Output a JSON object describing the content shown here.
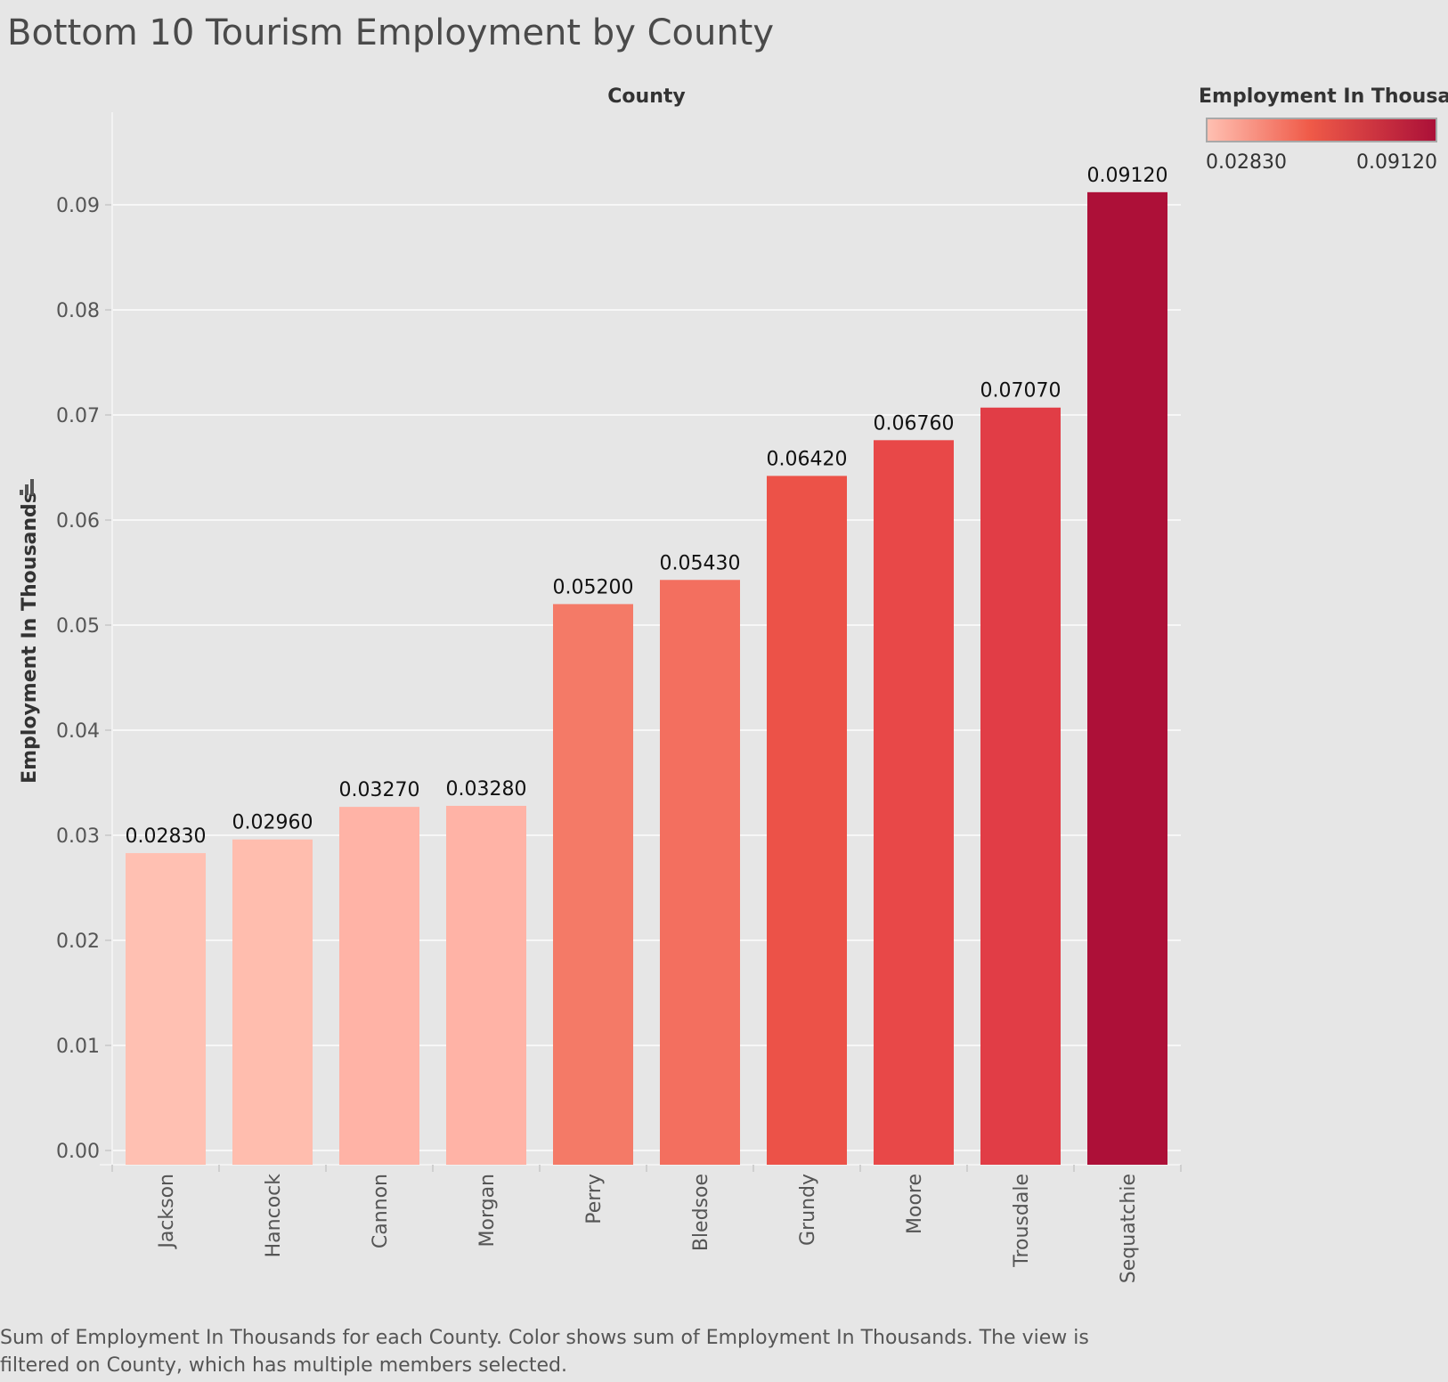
{
  "title": "Bottom 10 Tourism Employment by County",
  "caption_line1": "Sum of Employment In Thousands for each County.  Color shows sum of Employment In Thousands. The view is",
  "caption_line2": "filtered on County, which has multiple members selected.",
  "legend": {
    "title": "Employment In Thousa..",
    "min_label": "0.02830",
    "max_label": "0.09120",
    "color_low": "#ffc0b2",
    "color_mid": "#ef5a48",
    "color_high": "#ab1038"
  },
  "chart_data": {
    "type": "bar",
    "title": "Bottom 10 Tourism Employment by County",
    "column_header": "County",
    "xlabel": "",
    "ylabel": "Employment In Thousands",
    "ylim": [
      0,
      0.099
    ],
    "yticks": [
      "0.00",
      "0.01",
      "0.02",
      "0.03",
      "0.04",
      "0.05",
      "0.06",
      "0.07",
      "0.08",
      "0.09"
    ],
    "grid": true,
    "categories": [
      "Jackson",
      "Hancock",
      "Cannon",
      "Morgan",
      "Perry",
      "Bledsoe",
      "Grundy",
      "Moore",
      "Trousdale",
      "Sequatchie"
    ],
    "values": [
      0.0283,
      0.0296,
      0.0327,
      0.0328,
      0.052,
      0.0543,
      0.0642,
      0.0676,
      0.0707,
      0.0912
    ],
    "value_labels": [
      "0.02830",
      "0.02960",
      "0.03270",
      "0.03280",
      "0.05200",
      "0.05430",
      "0.06420",
      "0.06760",
      "0.07070",
      "0.09120"
    ],
    "bar_colors": [
      "#ffc0b2",
      "#ffbdae",
      "#ffb3a6",
      "#ffb3a6",
      "#f47a67",
      "#f36f5f",
      "#ec5248",
      "#e84848",
      "#e13d46",
      "#ad1038"
    ]
  }
}
